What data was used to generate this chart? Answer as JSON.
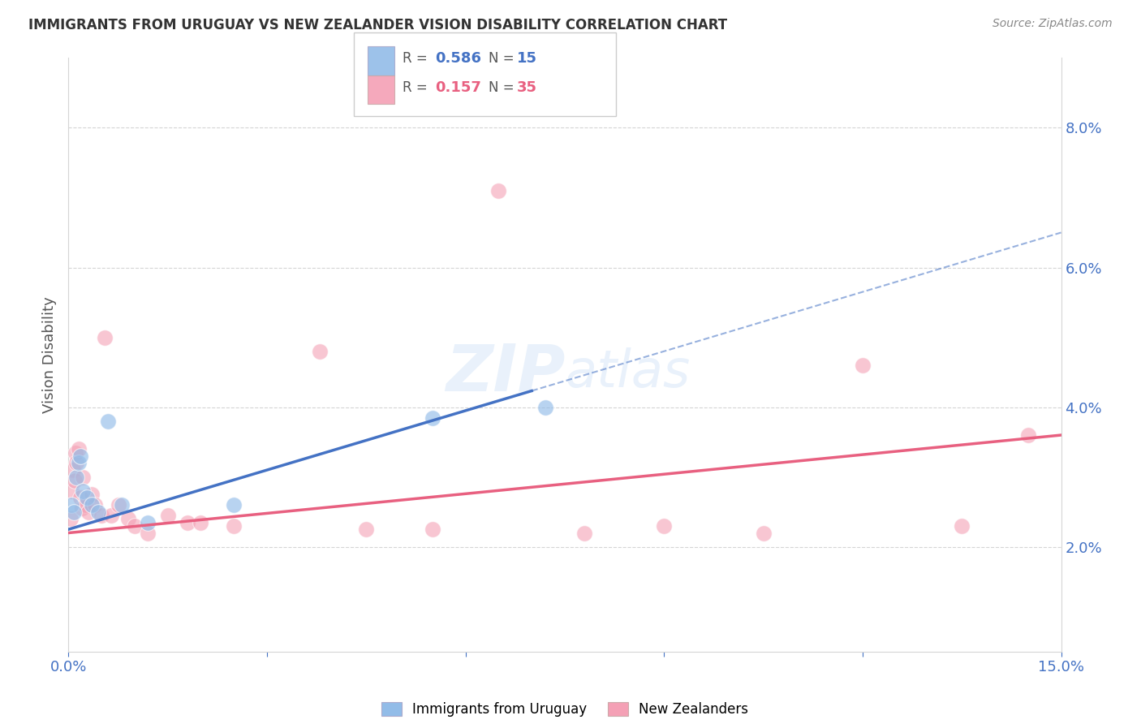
{
  "title": "IMMIGRANTS FROM URUGUAY VS NEW ZEALANDER VISION DISABILITY CORRELATION CHART",
  "source": "Source: ZipAtlas.com",
  "ylabel": "Vision Disability",
  "yticks": [
    2.0,
    4.0,
    6.0,
    8.0
  ],
  "xlim": [
    0.0,
    15.0
  ],
  "ylim": [
    0.5,
    9.0
  ],
  "r_uruguay": 0.586,
  "n_uruguay": 15,
  "r_nz": 0.157,
  "n_nz": 35,
  "color_uruguay": "#92bce8",
  "color_nz": "#f4a0b5",
  "line_color_uruguay": "#4472c4",
  "line_color_nz": "#e86080",
  "watermark": "ZIPatlas",
  "uru_line_x0": 0.0,
  "uru_line_y0": 2.25,
  "uru_line_x1": 15.0,
  "uru_line_y1": 6.5,
  "uru_solid_end_x": 7.0,
  "nz_line_x0": 0.0,
  "nz_line_y0": 2.2,
  "nz_line_x1": 15.0,
  "nz_line_y1": 3.6,
  "uruguay_x": [
    0.05,
    0.08,
    0.12,
    0.15,
    0.18,
    0.22,
    0.28,
    0.35,
    0.45,
    0.6,
    0.8,
    1.2,
    2.5,
    5.5,
    7.2
  ],
  "uruguay_y": [
    2.6,
    2.5,
    3.0,
    3.2,
    3.3,
    2.8,
    2.7,
    2.6,
    2.5,
    3.8,
    2.6,
    2.35,
    2.6,
    3.85,
    4.0
  ],
  "nz_x": [
    0.03,
    0.05,
    0.07,
    0.09,
    0.1,
    0.12,
    0.15,
    0.18,
    0.2,
    0.22,
    0.25,
    0.3,
    0.35,
    0.4,
    0.5,
    0.55,
    0.65,
    0.75,
    0.9,
    1.0,
    1.2,
    1.5,
    1.8,
    2.0,
    2.5,
    3.8,
    4.5,
    5.5,
    6.5,
    7.8,
    9.0,
    10.5,
    12.0,
    13.5,
    14.5
  ],
  "nz_y": [
    2.4,
    2.8,
    3.1,
    2.95,
    3.35,
    3.2,
    3.4,
    2.7,
    2.55,
    3.0,
    2.6,
    2.5,
    2.75,
    2.6,
    2.45,
    5.0,
    2.45,
    2.6,
    2.4,
    2.3,
    2.2,
    2.45,
    2.35,
    2.35,
    2.3,
    4.8,
    2.25,
    2.25,
    7.1,
    2.2,
    2.3,
    2.2,
    4.6,
    2.3,
    3.6
  ]
}
